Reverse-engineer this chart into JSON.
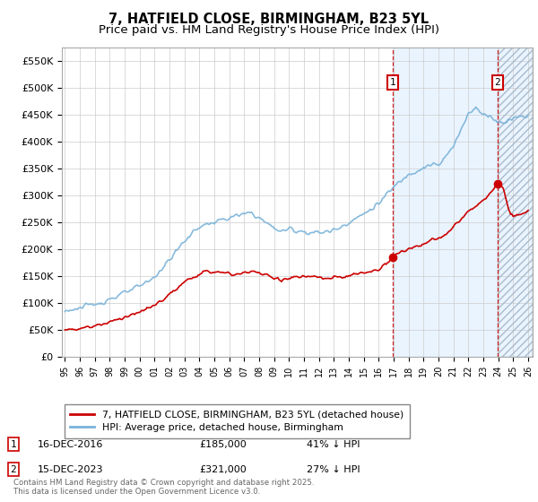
{
  "title_line1": "7, HATFIELD CLOSE, BIRMINGHAM, B23 5YL",
  "title_line2": "Price paid vs. HM Land Registry's House Price Index (HPI)",
  "ylim": [
    0,
    575000
  ],
  "yticks": [
    0,
    50000,
    100000,
    150000,
    200000,
    250000,
    300000,
    350000,
    400000,
    450000,
    500000,
    550000
  ],
  "ytick_labels": [
    "£0",
    "£50K",
    "£100K",
    "£150K",
    "£200K",
    "£250K",
    "£300K",
    "£350K",
    "£400K",
    "£450K",
    "£500K",
    "£550K"
  ],
  "xlim_start": 1995.0,
  "xlim_end": 2026.3,
  "sale1_date": 2016.96,
  "sale1_price": 185000,
  "sale2_date": 2023.96,
  "sale2_price": 321000,
  "sale_color": "#cc0000",
  "hpi_color": "#7ab3d9",
  "shade_color": "#ddeeff",
  "background_color": "#ffffff",
  "legend_sale_label": "7, HATFIELD CLOSE, BIRMINGHAM, B23 5YL (detached house)",
  "legend_hpi_label": "HPI: Average price, detached house, Birmingham",
  "annotation1_date": "16-DEC-2016",
  "annotation1_price": "£185,000",
  "annotation1_hpi": "41% ↓ HPI",
  "annotation2_date": "15-DEC-2023",
  "annotation2_price": "£321,000",
  "annotation2_hpi": "27% ↓ HPI",
  "footer": "Contains HM Land Registry data © Crown copyright and database right 2025.\nThis data is licensed under the Open Government Licence v3.0."
}
